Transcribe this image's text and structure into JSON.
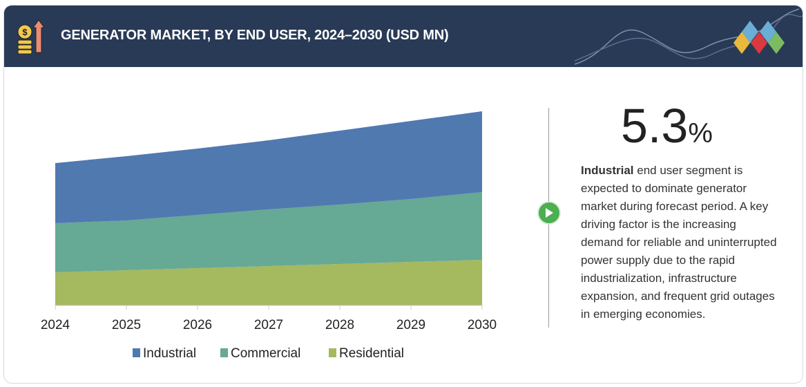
{
  "header": {
    "title": "GENERATOR MARKET, BY END USER, 2024–2030 (USD MN)",
    "icon": "money-growth-icon",
    "logo": "diamond-logo"
  },
  "chart_data": {
    "type": "area",
    "stacked": true,
    "title": "GENERATOR MARKET, BY END USER, 2024–2030 (USD MN)",
    "categories": [
      "2024",
      "2025",
      "2026",
      "2027",
      "2028",
      "2029",
      "2030"
    ],
    "series": [
      {
        "name": "Residential",
        "color": "#a5b95f",
        "values": [
          48,
          51,
          54,
          57,
          60,
          63,
          66
        ]
      },
      {
        "name": "Commercial",
        "color": "#66a995",
        "values": [
          71,
          72,
          77,
          82,
          86,
          91,
          98
        ]
      },
      {
        "name": "Industrial",
        "color": "#5079b0",
        "values": [
          87,
          93,
          96,
          100,
          107,
          113,
          117
        ]
      }
    ],
    "legend_order": [
      "Industrial",
      "Commercial",
      "Residential"
    ],
    "legend_position": "bottom",
    "grid": false,
    "y_axis_shown": false
  },
  "callout": {
    "value": "5.3",
    "unit": "%",
    "bold": "Industrial",
    "text": " end user segment is expected to dominate generator market during forecast period. A key driving factor is the increasing demand for reliable and uninterrupted power supply due to the rapid industrialization, infrastructure expansion, and frequent grid outages in emerging economies."
  }
}
